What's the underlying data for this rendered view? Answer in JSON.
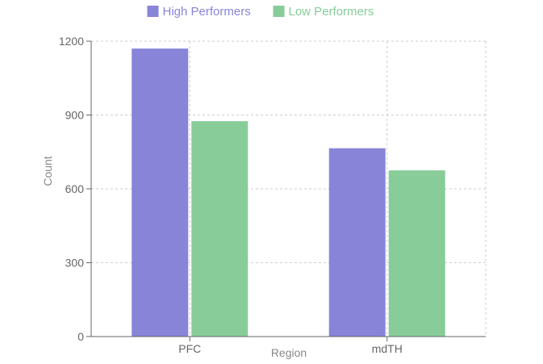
{
  "chart_data": {
    "type": "bar",
    "categories": [
      "PFC",
      "mdTH"
    ],
    "series": [
      {
        "name": "High Performers",
        "color": "#8884d8",
        "values": [
          1170,
          765
        ]
      },
      {
        "name": "Low Performers",
        "color": "#88cc99",
        "values": [
          875,
          675
        ]
      }
    ],
    "xlabel": "Region",
    "ylabel": "Count",
    "ylim": [
      0,
      1200
    ],
    "yticks": [
      0,
      300,
      600,
      900,
      1200
    ],
    "grid": true,
    "legend_position": "top-center"
  }
}
